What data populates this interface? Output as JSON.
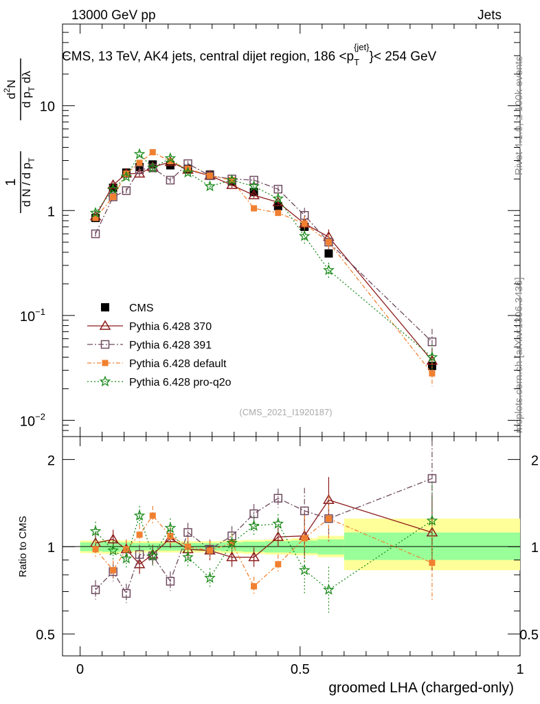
{
  "header": {
    "energy_label": "13000 GeV pp",
    "category_label": "Jets",
    "rivet_label": "Rivet 4.1.0, ≥ 100k events",
    "source_label": "mcplots.cern.ch [arXiv:1306.3436]",
    "analysis_id": "(CMS_2021_I1920187)"
  },
  "chart_data": [
    {
      "type": "scatter",
      "panel": "main",
      "title": "CMS, 13 TeV, AK4 jets, central dijet region, 186 <p_T^{jet}< 254 GeV",
      "title_parts": {
        "main": "CMS, 13 TeV, AK4 jets, central dijet region, 186 <p",
        "sub": "T",
        "sup": "{jet}",
        "tail": "}< 254 GeV"
      },
      "ylabel": "1/(dN/dpT) d²N/(dpT dλ)",
      "xlabel": "",
      "yscale": "log",
      "ylim": [
        0.007,
        60
      ],
      "xlim": [
        -0.04,
        1.0
      ],
      "y_ticks": [
        {
          "v": 0.01,
          "label": "10",
          "exp": "−2"
        },
        {
          "v": 0.1,
          "label": "10",
          "exp": "−1"
        },
        {
          "v": 1,
          "label": "1",
          "exp": ""
        },
        {
          "v": 10,
          "label": "10",
          "exp": ""
        }
      ],
      "x": [
        0.035,
        0.075,
        0.105,
        0.135,
        0.165,
        0.205,
        0.245,
        0.295,
        0.345,
        0.395,
        0.45,
        0.51,
        0.565,
        0.8
      ],
      "series": [
        {
          "name": "CMS",
          "color": "#000000",
          "marker": "square-filled",
          "dash": "none",
          "values": [
            0.85,
            1.65,
            2.3,
            2.6,
            2.75,
            2.7,
            2.5,
            2.2,
            1.9,
            1.5,
            1.1,
            0.7,
            0.39,
            0.033
          ]
        },
        {
          "name": "Pythia 6.428 370",
          "color": "#8b1a1a",
          "marker": "triangle-open",
          "dash": "none",
          "values": [
            0.88,
            1.75,
            2.25,
            2.25,
            2.6,
            2.9,
            2.45,
            2.15,
            1.75,
            1.4,
            1.2,
            0.75,
            0.56,
            0.037
          ]
        },
        {
          "name": "Pythia 6.428 391",
          "color": "#6e4a5e",
          "marker": "square-open",
          "dash": "8,3,2,3",
          "values": [
            0.6,
            1.35,
            1.55,
            2.45,
            2.55,
            1.95,
            2.8,
            2.15,
            2.0,
            1.95,
            1.6,
            0.9,
            0.5,
            0.056
          ]
        },
        {
          "name": "Pythia 6.428 default",
          "color": "#f08030",
          "marker": "square-filled-small",
          "dash": "6,3,2,3",
          "values": [
            0.85,
            1.35,
            2.25,
            2.85,
            3.6,
            2.95,
            2.5,
            2.15,
            1.95,
            1.05,
            0.95,
            0.75,
            0.5,
            0.028
          ]
        },
        {
          "name": "Pythia 6.428 pro-q2o",
          "color": "#1a8a1a",
          "marker": "star",
          "dash": "2,3",
          "values": [
            0.95,
            1.6,
            2.1,
            3.45,
            2.55,
            3.15,
            2.3,
            1.7,
            1.95,
            1.7,
            1.3,
            0.57,
            0.27,
            0.04
          ]
        }
      ]
    },
    {
      "type": "scatter",
      "panel": "ratio",
      "ylabel": "Ratio to CMS",
      "xlabel": "groomed LHA (charged-only)",
      "yscale": "log",
      "ylim": [
        0.42,
        2.4
      ],
      "xlim": [
        -0.04,
        1.0
      ],
      "y_ticks": [
        {
          "v": 0.5,
          "label": "0.5"
        },
        {
          "v": 1,
          "label": "1"
        },
        {
          "v": 2,
          "label": "2"
        }
      ],
      "x_ticks": [
        {
          "v": 0,
          "label": "0"
        },
        {
          "v": 0.5,
          "label": "0.5"
        },
        {
          "v": 1,
          "label": "1"
        }
      ],
      "x": [
        0.035,
        0.075,
        0.105,
        0.135,
        0.165,
        0.205,
        0.245,
        0.295,
        0.345,
        0.395,
        0.45,
        0.51,
        0.565,
        0.8
      ],
      "bins": [
        [
          0.0,
          0.05
        ],
        [
          0.05,
          0.09
        ],
        [
          0.09,
          0.12
        ],
        [
          0.12,
          0.15
        ],
        [
          0.15,
          0.18
        ],
        [
          0.18,
          0.23
        ],
        [
          0.23,
          0.27
        ],
        [
          0.27,
          0.32
        ],
        [
          0.32,
          0.37
        ],
        [
          0.37,
          0.42
        ],
        [
          0.42,
          0.48
        ],
        [
          0.48,
          0.54
        ],
        [
          0.54,
          0.6
        ],
        [
          0.6,
          1.0
        ]
      ],
      "band_inner": [
        [
          0.965,
          1.035
        ],
        [
          0.96,
          1.04
        ],
        [
          0.965,
          1.035
        ],
        [
          0.97,
          1.03
        ],
        [
          0.97,
          1.03
        ],
        [
          0.97,
          1.03
        ],
        [
          0.97,
          1.03
        ],
        [
          0.97,
          1.03
        ],
        [
          0.965,
          1.035
        ],
        [
          0.96,
          1.04
        ],
        [
          0.955,
          1.045
        ],
        [
          0.95,
          1.05
        ],
        [
          0.94,
          1.06
        ],
        [
          0.9,
          1.12
        ]
      ],
      "band_outer": [
        [
          0.95,
          1.05
        ],
        [
          0.945,
          1.055
        ],
        [
          0.95,
          1.05
        ],
        [
          0.955,
          1.045
        ],
        [
          0.955,
          1.045
        ],
        [
          0.955,
          1.045
        ],
        [
          0.955,
          1.045
        ],
        [
          0.955,
          1.045
        ],
        [
          0.95,
          1.05
        ],
        [
          0.945,
          1.055
        ],
        [
          0.94,
          1.06
        ],
        [
          0.935,
          1.07
        ],
        [
          0.92,
          1.09
        ],
        [
          0.83,
          1.25
        ]
      ],
      "series": [
        {
          "name": "Pythia 6.428 370",
          "color": "#8b1a1a",
          "marker": "triangle-open",
          "dash": "none",
          "values": [
            1.03,
            1.06,
            0.98,
            0.87,
            0.94,
            1.07,
            0.98,
            0.97,
            0.92,
            0.92,
            1.08,
            1.09,
            1.45,
            1.12
          ]
        },
        {
          "name": "Pythia 6.428 391",
          "color": "#6e4a5e",
          "marker": "square-open",
          "dash": "8,3,2,3",
          "values": [
            0.71,
            0.82,
            0.69,
            0.94,
            0.93,
            0.76,
            1.12,
            0.98,
            1.09,
            1.3,
            1.47,
            1.33,
            1.25,
            1.72
          ]
        },
        {
          "name": "Pythia 6.428 default",
          "color": "#f08030",
          "marker": "square-filled-small",
          "dash": "6,3,2,3",
          "values": [
            0.98,
            0.83,
            0.98,
            1.1,
            1.28,
            1.09,
            1.0,
            0.97,
            1.03,
            0.73,
            0.87,
            1.07,
            1.25,
            0.88
          ]
        },
        {
          "name": "Pythia 6.428 pro-q2o",
          "color": "#1a8a1a",
          "marker": "star",
          "dash": "2,3",
          "values": [
            1.13,
            0.97,
            0.91,
            1.28,
            0.93,
            1.16,
            0.92,
            0.78,
            1.03,
            1.18,
            1.2,
            0.83,
            0.71,
            1.23
          ]
        }
      ]
    }
  ]
}
